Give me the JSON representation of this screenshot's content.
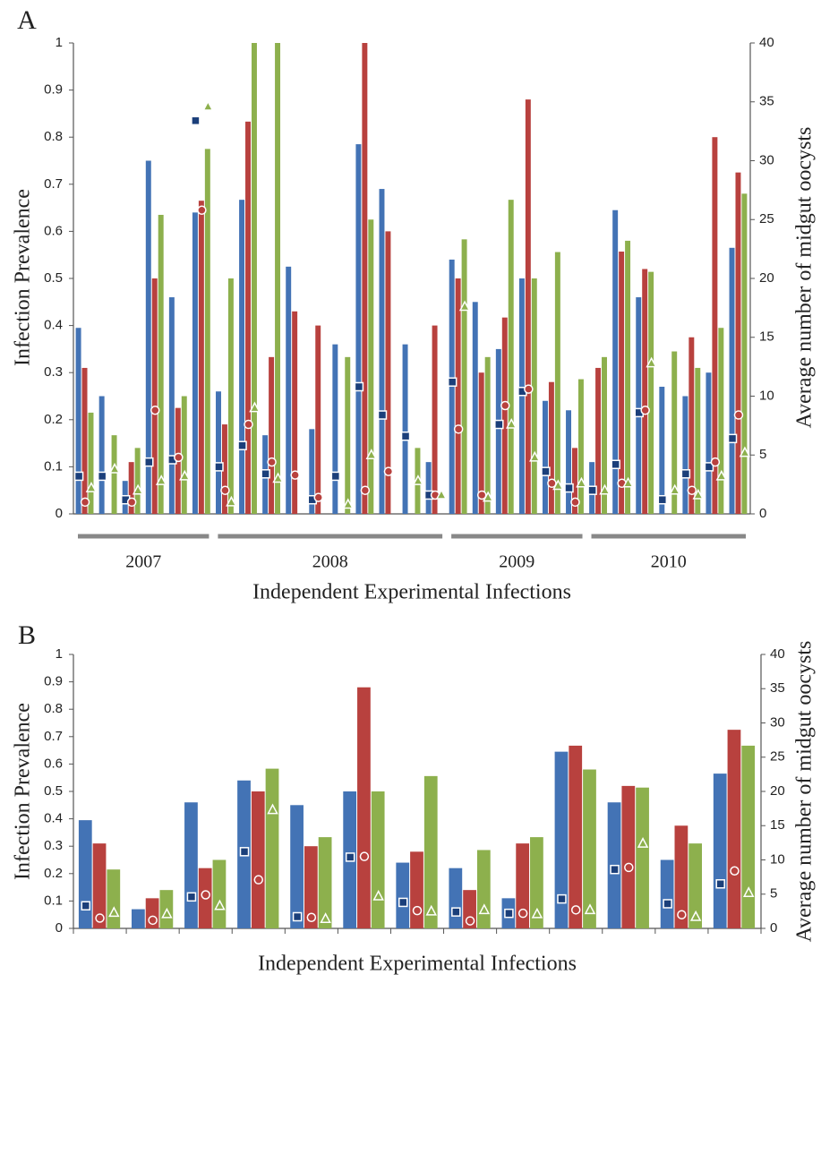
{
  "chart_data": [
    {
      "type": "bar",
      "panel_label": "A",
      "xlabel": "Independent Experimental Infections",
      "ylabel": "Infection Prevalence",
      "y2label": "Average number of midgut oocysts",
      "categories": [
        "2007",
        "2007",
        "2007",
        "2007",
        "2007",
        "2007",
        "2008",
        "2008",
        "2008",
        "2008",
        "2008",
        "2008",
        "2008",
        "2008",
        "2008",
        "2008",
        "2009",
        "2009",
        "2009",
        "2009",
        "2009",
        "2009",
        "2010",
        "2010",
        "2010",
        "2010",
        "2010",
        "2010",
        "2010"
      ],
      "ylim": [
        0,
        1
      ],
      "yticks": [
        0,
        0.1,
        0.2,
        0.3,
        0.4,
        0.5,
        0.6,
        0.7,
        0.8,
        0.9,
        1
      ],
      "y2lim": [
        0,
        40
      ],
      "y2ticks": [
        0,
        5,
        10,
        15,
        20,
        25,
        30,
        35,
        40
      ],
      "series": [
        {
          "color": "#4373b5",
          "values": [
            0.395,
            0.25,
            0.07,
            0.75,
            0.46,
            0.64,
            0.26,
            0.667,
            0.167,
            0.525,
            0.18,
            0.36,
            0.785,
            0.69,
            0.36,
            0.11,
            0.54,
            0.45,
            0.35,
            0.5,
            0.24,
            0.22,
            0.11,
            0.645,
            0.46,
            0.27,
            0.25,
            0.3,
            0.565
          ]
        },
        {
          "color": "#b8413e",
          "values": [
            0.31,
            0,
            0.11,
            0.5,
            0.225,
            0.665,
            0.19,
            0.833,
            0.333,
            0.43,
            0.4,
            0,
            1,
            0.6,
            0,
            0.4,
            0.5,
            0.3,
            0.417,
            0.88,
            0.28,
            0.14,
            0.31,
            0.557,
            0.52,
            0,
            0.375,
            0.8,
            0.725
          ]
        },
        {
          "color": "#8db04d",
          "values": [
            0.215,
            0.167,
            0.14,
            0.635,
            0.25,
            0.775,
            0.5,
            1,
            1,
            0,
            0,
            0.333,
            0.625,
            0,
            0.14,
            0,
            0.583,
            0.333,
            0.667,
            0.5,
            0.556,
            0.286,
            0.333,
            0.58,
            0.514,
            0.345,
            0.31,
            0.395,
            0.68
          ]
        },
        {
          "axis": "y2",
          "marker": "square",
          "color": "#1b3f7a",
          "values": [
            3.2,
            3.2,
            1.2,
            4.4,
            4.6,
            33.4,
            4.0,
            5.8,
            3.4,
            null,
            1.2,
            3.2,
            10.8,
            8.4,
            6.6,
            1.6,
            11.2,
            null,
            7.6,
            10.4,
            3.6,
            2.2,
            2.0,
            4.2,
            8.6,
            1.2,
            3.4,
            4.0,
            6.4
          ]
        },
        {
          "axis": "y2",
          "marker": "circle",
          "color": "#b8413e",
          "values": [
            1.0,
            null,
            1.0,
            8.8,
            4.8,
            25.8,
            2.0,
            7.6,
            4.4,
            3.3,
            1.4,
            null,
            2.0,
            3.6,
            null,
            1.6,
            7.2,
            1.6,
            9.2,
            10.6,
            2.6,
            1.0,
            null,
            2.6,
            8.8,
            null,
            2.0,
            4.4,
            8.4
          ]
        },
        {
          "axis": "y2",
          "marker": "triangle",
          "color": "#8db04d",
          "values": [
            2.2,
            3.8,
            2.0,
            2.8,
            3.2,
            34.6,
            1.0,
            9.0,
            3.0,
            null,
            null,
            0.8,
            5.0,
            null,
            2.8,
            1.6,
            17.6,
            1.4,
            7.6,
            4.8,
            2.4,
            2.6,
            2.0,
            2.6,
            12.8,
            2.0,
            1.6,
            3.2,
            5.2
          ]
        }
      ]
    },
    {
      "type": "bar",
      "panel_label": "B",
      "xlabel": "Independent Experimental Infections",
      "ylabel": "Infection Prevalence",
      "y2label": "Average number of midgut oocysts",
      "categories": [
        null,
        null,
        null,
        null,
        null,
        null,
        null,
        null,
        null,
        null,
        null,
        null,
        null
      ],
      "ylim": [
        0,
        1
      ],
      "yticks": [
        0,
        0.1,
        0.2,
        0.3,
        0.4,
        0.5,
        0.6,
        0.7,
        0.8,
        0.9,
        1
      ],
      "y2lim": [
        0,
        40
      ],
      "y2ticks": [
        0,
        5,
        10,
        15,
        20,
        25,
        30,
        35,
        40
      ],
      "series": [
        {
          "color": "#4373b5",
          "values": [
            0.395,
            0.07,
            0.46,
            0.54,
            0.45,
            0.5,
            0.24,
            0.22,
            0.11,
            0.645,
            0.46,
            0.25,
            0.565
          ]
        },
        {
          "color": "#b8413e",
          "values": [
            0.31,
            0.11,
            0.22,
            0.5,
            0.3,
            0.88,
            0.28,
            0.14,
            0.31,
            0.667,
            0.52,
            0.375,
            0.725
          ]
        },
        {
          "color": "#8db04d",
          "values": [
            0.215,
            0.14,
            0.25,
            0.583,
            0.333,
            0.5,
            0.556,
            0.286,
            0.333,
            0.58,
            0.514,
            0.31,
            0.667
          ]
        },
        {
          "axis": "y2",
          "marker": "square",
          "color": "#1b3f7a",
          "values": [
            3.3,
            null,
            4.6,
            11.2,
            1.7,
            10.4,
            3.8,
            2.4,
            2.2,
            4.3,
            8.6,
            3.6,
            6.5
          ]
        },
        {
          "axis": "y2",
          "marker": "circle",
          "color": "#b8413e",
          "values": [
            1.5,
            1.2,
            4.9,
            7.1,
            1.6,
            10.5,
            2.6,
            1.1,
            2.2,
            2.7,
            8.9,
            2.0,
            8.4
          ]
        },
        {
          "axis": "y2",
          "marker": "triangle",
          "color": "#8db04d",
          "values": [
            2.3,
            2.1,
            3.3,
            17.3,
            1.4,
            4.7,
            2.5,
            2.7,
            2.1,
            2.7,
            12.4,
            1.7,
            5.2
          ]
        }
      ]
    }
  ]
}
